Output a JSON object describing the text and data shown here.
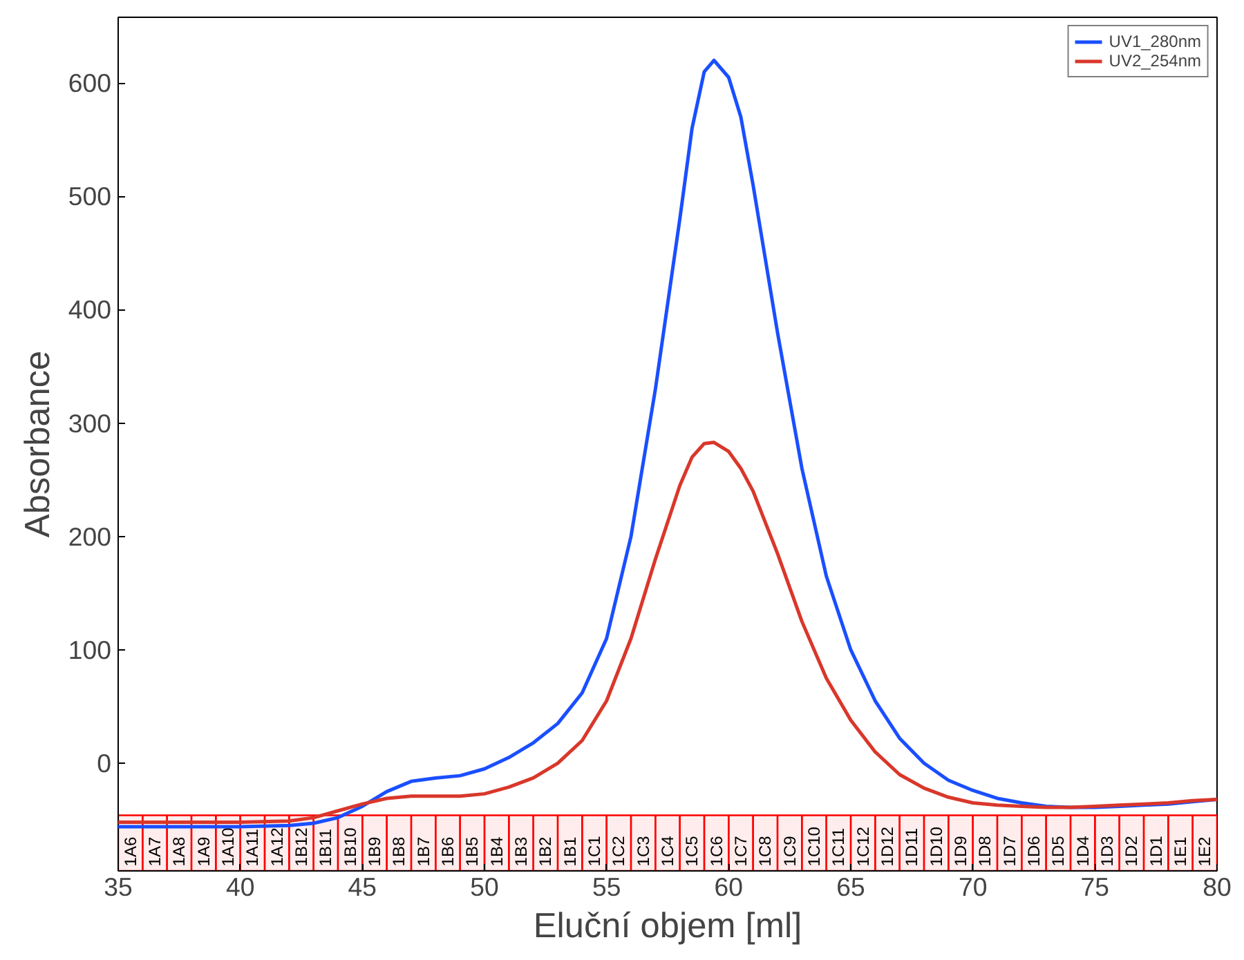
{
  "chart_data": {
    "type": "line",
    "xlabel": "Eluční objem [ml]",
    "ylabel": "Absorbance",
    "xlim": [
      35,
      80
    ],
    "xticks": [
      35,
      40,
      45,
      50,
      55,
      60,
      65,
      70,
      75,
      80
    ],
    "ylim": [
      -95,
      658
    ],
    "yticks": [
      0,
      100,
      200,
      300,
      400,
      500,
      600
    ],
    "legend": "top right",
    "line_style": "solid",
    "x": [
      35,
      36,
      38,
      40,
      42,
      43,
      44,
      45,
      46,
      47,
      48,
      49,
      50,
      51,
      52,
      53,
      54,
      55,
      56,
      57,
      58,
      58.5,
      59,
      59.4,
      60,
      60.5,
      61,
      62,
      63,
      64,
      65,
      66,
      67,
      68,
      69,
      70,
      71,
      72,
      73,
      74,
      75,
      76,
      77,
      78,
      79,
      80
    ],
    "series": [
      {
        "name": "UV1_280nm",
        "color": "#1a4fff",
        "values": [
          -56,
          -56,
          -56,
          -56,
          -55,
          -53,
          -48,
          -38,
          -25,
          -16,
          -13,
          -11,
          -5,
          5,
          18,
          35,
          62,
          110,
          200,
          330,
          480,
          560,
          610,
          620,
          605,
          570,
          510,
          380,
          260,
          165,
          100,
          55,
          22,
          0,
          -15,
          -24,
          -31,
          -35,
          -38,
          -39,
          -39,
          -38,
          -37,
          -36,
          -34,
          -32
        ]
      },
      {
        "name": "UV2_254nm",
        "color": "#d9372b",
        "values": [
          -52,
          -52,
          -52,
          -52,
          -51,
          -48,
          -42,
          -36,
          -31,
          -29,
          -29,
          -29,
          -27,
          -21,
          -13,
          0,
          20,
          55,
          110,
          180,
          245,
          270,
          282,
          283,
          275,
          260,
          240,
          185,
          125,
          75,
          38,
          10,
          -10,
          -22,
          -30,
          -35,
          -37,
          -38,
          -39,
          -39,
          -38,
          -37,
          -36,
          -35,
          -33,
          -32
        ]
      }
    ],
    "bands": [
      {
        "axis": "x",
        "from": 35,
        "to": 36,
        "label": "1A6",
        "color": "#ff0000"
      },
      {
        "axis": "x",
        "from": 36,
        "to": 37,
        "label": "1A7",
        "color": "#ff0000"
      },
      {
        "axis": "x",
        "from": 37,
        "to": 38,
        "label": "1A8",
        "color": "#ff0000"
      },
      {
        "axis": "x",
        "from": 38,
        "to": 39,
        "label": "1A9",
        "color": "#ff0000"
      },
      {
        "axis": "x",
        "from": 39,
        "to": 40,
        "label": "1A10",
        "color": "#ff0000"
      },
      {
        "axis": "x",
        "from": 40,
        "to": 41,
        "label": "1A11",
        "color": "#ff0000"
      },
      {
        "axis": "x",
        "from": 41,
        "to": 42,
        "label": "1A12",
        "color": "#ff0000"
      },
      {
        "axis": "x",
        "from": 42,
        "to": 43,
        "label": "1B12",
        "color": "#ff0000"
      },
      {
        "axis": "x",
        "from": 43,
        "to": 44,
        "label": "1B11",
        "color": "#ff0000"
      },
      {
        "axis": "x",
        "from": 44,
        "to": 45,
        "label": "1B10",
        "color": "#ff0000"
      },
      {
        "axis": "x",
        "from": 45,
        "to": 46,
        "label": "1B9",
        "color": "#ff0000"
      },
      {
        "axis": "x",
        "from": 46,
        "to": 47,
        "label": "1B8",
        "color": "#ff0000"
      },
      {
        "axis": "x",
        "from": 47,
        "to": 48,
        "label": "1B7",
        "color": "#ff0000"
      },
      {
        "axis": "x",
        "from": 48,
        "to": 49,
        "label": "1B6",
        "color": "#ff0000"
      },
      {
        "axis": "x",
        "from": 49,
        "to": 50,
        "label": "1B5",
        "color": "#ff0000"
      },
      {
        "axis": "x",
        "from": 50,
        "to": 51,
        "label": "1B4",
        "color": "#ff0000"
      },
      {
        "axis": "x",
        "from": 51,
        "to": 52,
        "label": "1B3",
        "color": "#ff0000"
      },
      {
        "axis": "x",
        "from": 52,
        "to": 53,
        "label": "1B2",
        "color": "#ff0000"
      },
      {
        "axis": "x",
        "from": 53,
        "to": 54,
        "label": "1B1",
        "color": "#ff0000"
      },
      {
        "axis": "x",
        "from": 54,
        "to": 55,
        "label": "1C1",
        "color": "#ff0000"
      },
      {
        "axis": "x",
        "from": 55,
        "to": 56,
        "label": "1C2",
        "color": "#ff0000"
      },
      {
        "axis": "x",
        "from": 56,
        "to": 57,
        "label": "1C3",
        "color": "#ff0000"
      },
      {
        "axis": "x",
        "from": 57,
        "to": 58,
        "label": "1C4",
        "color": "#ff0000"
      },
      {
        "axis": "x",
        "from": 58,
        "to": 59,
        "label": "1C5",
        "color": "#ff0000"
      },
      {
        "axis": "x",
        "from": 59,
        "to": 60,
        "label": "1C6",
        "color": "#ff0000"
      },
      {
        "axis": "x",
        "from": 60,
        "to": 61,
        "label": "1C7",
        "color": "#ff0000"
      },
      {
        "axis": "x",
        "from": 61,
        "to": 62,
        "label": "1C8",
        "color": "#ff0000"
      },
      {
        "axis": "x",
        "from": 62,
        "to": 63,
        "label": "1C9",
        "color": "#ff0000"
      },
      {
        "axis": "x",
        "from": 63,
        "to": 64,
        "label": "1C10",
        "color": "#ff0000"
      },
      {
        "axis": "x",
        "from": 64,
        "to": 65,
        "label": "1C11",
        "color": "#ff0000"
      },
      {
        "axis": "x",
        "from": 65,
        "to": 66,
        "label": "1C12",
        "color": "#ff0000"
      },
      {
        "axis": "x",
        "from": 66,
        "to": 67,
        "label": "1D12",
        "color": "#ff0000"
      },
      {
        "axis": "x",
        "from": 67,
        "to": 68,
        "label": "1D11",
        "color": "#ff0000"
      },
      {
        "axis": "x",
        "from": 68,
        "to": 69,
        "label": "1D10",
        "color": "#ff0000"
      },
      {
        "axis": "x",
        "from": 69,
        "to": 70,
        "label": "1D9",
        "color": "#ff0000"
      },
      {
        "axis": "x",
        "from": 70,
        "to": 71,
        "label": "1D8",
        "color": "#ff0000"
      },
      {
        "axis": "x",
        "from": 71,
        "to": 72,
        "label": "1D7",
        "color": "#ff0000"
      },
      {
        "axis": "x",
        "from": 72,
        "to": 73,
        "label": "1D6",
        "color": "#ff0000"
      },
      {
        "axis": "x",
        "from": 73,
        "to": 74,
        "label": "1D5",
        "color": "#ff0000"
      },
      {
        "axis": "x",
        "from": 74,
        "to": 75,
        "label": "1D4",
        "color": "#ff0000"
      },
      {
        "axis": "x",
        "from": 75,
        "to": 76,
        "label": "1D3",
        "color": "#ff0000"
      },
      {
        "axis": "x",
        "from": 76,
        "to": 77,
        "label": "1D2",
        "color": "#ff0000"
      },
      {
        "axis": "x",
        "from": 77,
        "to": 78,
        "label": "1D1",
        "color": "#ff0000"
      },
      {
        "axis": "x",
        "from": 78,
        "to": 79,
        "label": "1E1",
        "color": "#ff0000"
      },
      {
        "axis": "x",
        "from": 79,
        "to": 80,
        "label": "1E2",
        "color": "#ff0000"
      }
    ]
  }
}
